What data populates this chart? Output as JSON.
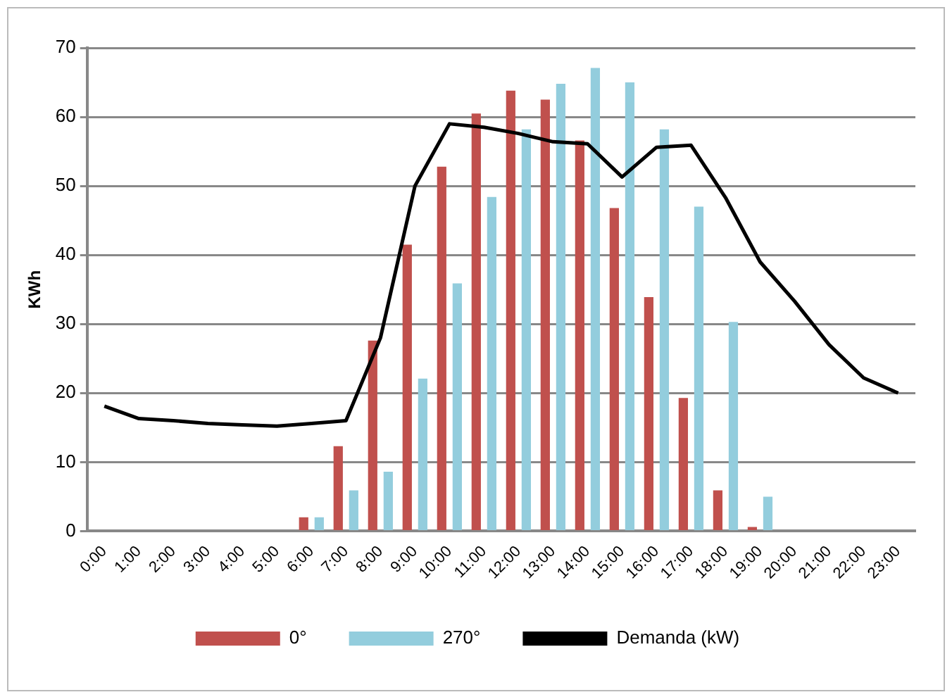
{
  "chart_data": {
    "type": "bar",
    "ylabel": "KWh",
    "categories": [
      "0:00",
      "1:00",
      "2:00",
      "3:00",
      "4:00",
      "5:00",
      "6:00",
      "7:00",
      "8:00",
      "9:00",
      "10:00",
      "11:00",
      "12:00",
      "13:00",
      "14:00",
      "15:00",
      "16:00",
      "17:00",
      "18:00",
      "19:00",
      "20:00",
      "21:00",
      "22:00",
      "23:00"
    ],
    "series": [
      {
        "name": "0°",
        "color": "#c0504d",
        "values": [
          0,
          0,
          0,
          0,
          0,
          0,
          2,
          12.3,
          27.6,
          41.5,
          52.8,
          60.5,
          63.8,
          62.5,
          56.6,
          46.8,
          33.9,
          19.3,
          5.9,
          0.6,
          0,
          0,
          0,
          0
        ]
      },
      {
        "name": "270°",
        "color": "#93cddd",
        "values": [
          0,
          0,
          0,
          0,
          0,
          0,
          2,
          5.9,
          8.6,
          22.1,
          35.9,
          48.4,
          58.2,
          64.8,
          67.1,
          65,
          58.2,
          47,
          30.3,
          5,
          0,
          0,
          0,
          0
        ]
      },
      {
        "name": "Demanda (kW)",
        "type": "line",
        "color": "#000000",
        "values": [
          18.1,
          16.3,
          16,
          15.6,
          15.4,
          15.2,
          15.6,
          16,
          28,
          50,
          59,
          58.5,
          57.6,
          56.4,
          56.1,
          51.3,
          55.6,
          55.9,
          48.3,
          39,
          33.3,
          27,
          22.2,
          20
        ]
      }
    ],
    "ylim": [
      0,
      70
    ],
    "yticks": [
      0,
      10,
      20,
      30,
      40,
      50,
      60,
      70
    ],
    "grid": "y",
    "legend": "bottom",
    "marker": "none"
  }
}
